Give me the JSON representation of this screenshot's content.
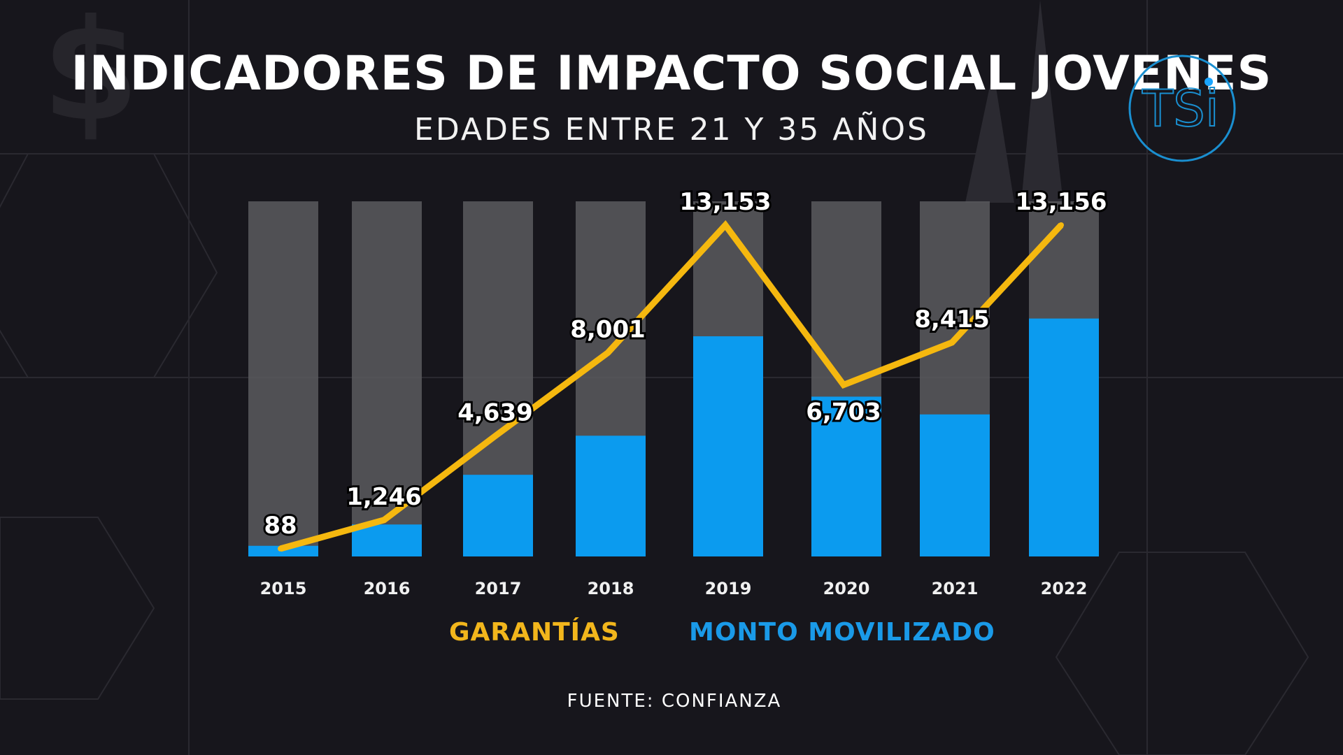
{
  "chart_data": {
    "type": "bar+line",
    "title": "INDICADORES DE IMPACTO SOCIAL JOVENES",
    "subtitle": "EDADES ENTRE 21 Y 35 AÑOS",
    "categories": [
      "2015",
      "2016",
      "2017",
      "2018",
      "2019",
      "2020",
      "2021",
      "2022"
    ],
    "series": [
      {
        "name": "GARANTÍAS",
        "type": "line",
        "color": "#f5b80f",
        "values": [
          88,
          1246,
          4639,
          8001,
          13153,
          6703,
          8415,
          13156
        ],
        "labels": [
          "88",
          "1,246",
          "4,639",
          "8,001",
          "13,153",
          "6,703",
          "8,415",
          "13,156"
        ]
      },
      {
        "name": "MONTO MOVILIZADO",
        "type": "bar",
        "color": "#0b9bef",
        "fill_fraction": [
          0.03,
          0.09,
          0.23,
          0.34,
          0.62,
          0.45,
          0.4,
          0.67
        ]
      }
    ],
    "background_bar_color": "#5a5a5e",
    "grid": false,
    "legend_placement": "bottom",
    "source": "FUENTE: CONFIANZA"
  },
  "logo": {
    "text": "TSi",
    "color": "#1a8fd0"
  }
}
